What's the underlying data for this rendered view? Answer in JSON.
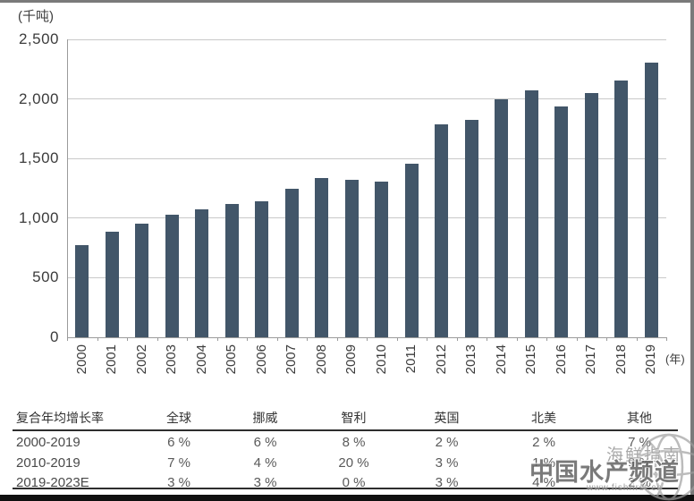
{
  "chart_data": {
    "type": "bar",
    "title": "",
    "unit_label": "(千吨)",
    "x_unit_label": "(年)",
    "categories": [
      "2000",
      "2001",
      "2002",
      "2003",
      "2004",
      "2005",
      "2006",
      "2007",
      "2008",
      "2009",
      "2010",
      "2011",
      "2012",
      "2013",
      "2014",
      "2015",
      "2016",
      "2017",
      "2018",
      "2019"
    ],
    "values": [
      775,
      885,
      950,
      1030,
      1075,
      1115,
      1140,
      1245,
      1340,
      1320,
      1305,
      1455,
      1790,
      1825,
      1995,
      2070,
      1940,
      2050,
      2155,
      2305
    ],
    "xlabel": "(年)",
    "ylabel": "(千吨)",
    "ylim": [
      0,
      2500
    ],
    "grid": true,
    "legend": false,
    "bar_color": "#425669",
    "yticks": [
      {
        "value": 0,
        "label": "0"
      },
      {
        "value": 500,
        "label": "500"
      },
      {
        "value": 1000,
        "label": "1,000"
      },
      {
        "value": 1500,
        "label": "1,500"
      },
      {
        "value": 2000,
        "label": "2,000"
      },
      {
        "value": 2500,
        "label": "2,500"
      }
    ]
  },
  "table": {
    "headers": [
      "复合年均增长率",
      "全球",
      "挪威",
      "智利",
      "英国",
      "北美",
      "其他"
    ],
    "rows": [
      [
        "2000-2019",
        "6 %",
        "6 %",
        "8 %",
        "2 %",
        "2 %",
        "7 %"
      ],
      [
        "2010-2019",
        "7 %",
        "4 %",
        "20 %",
        "3 %",
        "1 %",
        "9 %"
      ],
      [
        "2019-2023E",
        "3 %",
        "3 %",
        "0 %",
        "3 %",
        "4 %",
        "2 %"
      ]
    ]
  },
  "watermark": {
    "main": "中国水产频道",
    "side": "海鲜指南",
    "url": "www.fishfirst.cn"
  }
}
